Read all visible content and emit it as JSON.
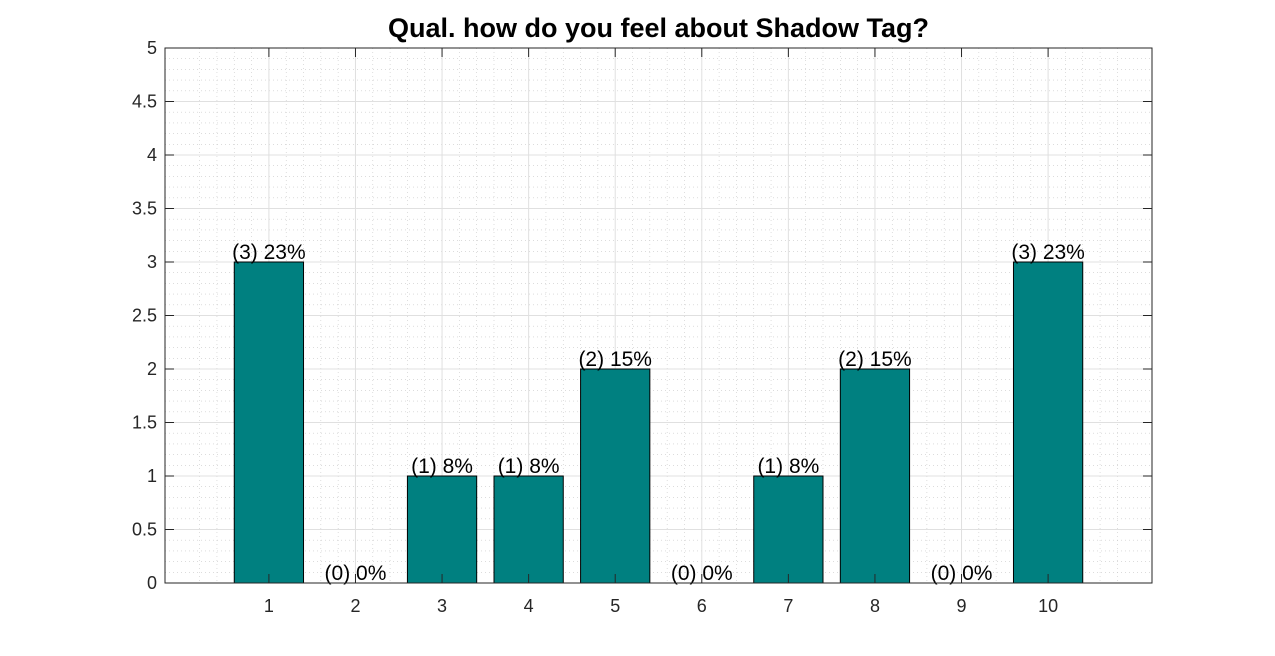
{
  "chart_data": {
    "type": "bar",
    "title": "Qual. how do you feel about Shadow Tag?",
    "xlabel": "",
    "ylabel": "",
    "categories": [
      "1",
      "2",
      "3",
      "4",
      "5",
      "6",
      "7",
      "8",
      "9",
      "10"
    ],
    "values": [
      3,
      0,
      1,
      1,
      2,
      0,
      1,
      2,
      0,
      3
    ],
    "data_labels": [
      "(3) 23%",
      "(0) 0%",
      "(1) 8%",
      "(1) 8%",
      "(2) 15%",
      "(0) 0%",
      "(1) 8%",
      "(2) 15%",
      "(0) 0%",
      "(3) 23%"
    ],
    "xlim": [
      -0.2,
      11.2
    ],
    "ylim": [
      0,
      5
    ],
    "yticks": [
      0,
      0.5,
      1,
      1.5,
      2,
      2.5,
      3,
      3.5,
      4,
      4.5,
      5
    ],
    "ytick_labels": [
      "0",
      "0.5",
      "1",
      "1.5",
      "2",
      "2.5",
      "3",
      "3.5",
      "4",
      "4.5",
      "5"
    ],
    "grid": true,
    "minor_grid": true,
    "colors": {
      "bar_fill": "#008080",
      "bar_edge": "#000000",
      "axis": "#262626",
      "major_grid": "#e0e0e0",
      "minor_grid": "#c8c8c8"
    }
  }
}
